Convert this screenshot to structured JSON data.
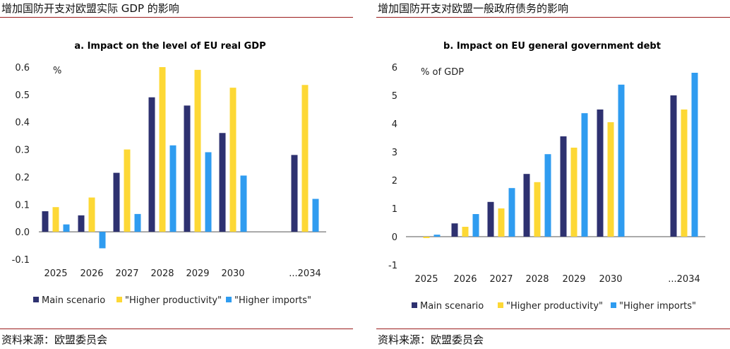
{
  "panels": [
    {
      "heading": "增加国防开支对欧盟实际 GDP 的影响",
      "source": "资料来源：欧盟委员会"
    },
    {
      "heading": "增加国防开支对欧盟一般政府债务的影响",
      "source": "资料来源：欧盟委员会"
    }
  ],
  "colors": {
    "main": "#2e3170",
    "productivity": "#fdd835",
    "imports": "#2f9cf0",
    "rule": "#9b1c1c"
  },
  "chart_data": [
    {
      "type": "bar",
      "title": "a. Impact on the level of EU real GDP",
      "unit_label": "%",
      "categories": [
        "2025",
        "2026",
        "2027",
        "2028",
        "2029",
        "2030",
        "...2034"
      ],
      "ylim": [
        -0.1,
        0.6
      ],
      "yticks": [
        -0.1,
        0.0,
        0.1,
        0.2,
        0.3,
        0.4,
        0.5,
        0.6
      ],
      "ytick_labels": [
        "-0.1",
        "0.0",
        "0.1",
        "0.2",
        "0.3",
        "0.4",
        "0.5",
        "0.6"
      ],
      "series": [
        {
          "name": "Main scenario",
          "values": [
            0.075,
            0.06,
            0.215,
            0.49,
            0.46,
            0.36,
            0.28
          ]
        },
        {
          "name": "\"Higher productivity\"",
          "values": [
            0.09,
            0.125,
            0.3,
            0.6,
            0.59,
            0.525,
            0.535
          ]
        },
        {
          "name": "\"Higher imports\"",
          "values": [
            0.027,
            -0.06,
            0.065,
            0.315,
            0.29,
            0.205,
            0.12
          ]
        }
      ],
      "legend_position": "bottom"
    },
    {
      "type": "bar",
      "title": "b. Impact on EU general government debt",
      "unit_label": "% of GDP",
      "categories": [
        "2025",
        "2026",
        "2027",
        "2028",
        "2029",
        "2030",
        "...2034"
      ],
      "ylim": [
        -1,
        6
      ],
      "yticks": [
        -1,
        0,
        1,
        2,
        3,
        4,
        5,
        6
      ],
      "ytick_labels": [
        "-1",
        "0",
        "1",
        "2",
        "3",
        "4",
        "5",
        "6"
      ],
      "series": [
        {
          "name": "Main scenario",
          "values": [
            0.0,
            0.47,
            1.23,
            2.22,
            3.55,
            4.5,
            5.0
          ]
        },
        {
          "name": "\"Higher productivity\"",
          "values": [
            -0.05,
            0.35,
            1.0,
            1.93,
            3.15,
            4.05,
            4.5
          ]
        },
        {
          "name": "\"Higher imports\"",
          "values": [
            0.07,
            0.8,
            1.72,
            2.92,
            4.37,
            5.38,
            5.8
          ]
        }
      ],
      "legend_position": "bottom"
    }
  ]
}
